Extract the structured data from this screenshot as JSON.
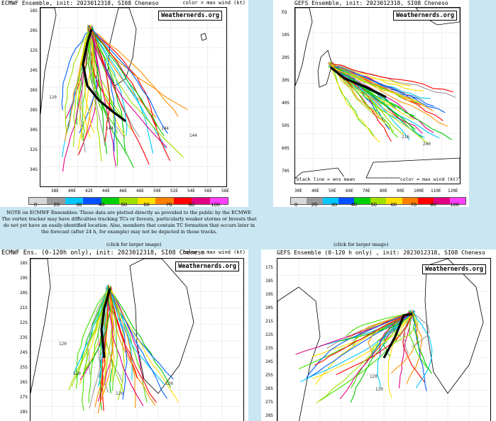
{
  "panels": [
    {
      "id": "ecmwf-full",
      "title": "ECMWF Ensemble, init: 2023012318, SI08 Cheneso",
      "color_note": "color = max wind (kt)",
      "badge": "Weathernerds.org",
      "lat_labels": [
        "18S",
        "20S",
        "22S",
        "24S",
        "26S",
        "28S",
        "30S",
        "32S",
        "34S"
      ],
      "lon_labels": [
        "38E",
        "40E",
        "42E",
        "44E",
        "46E",
        "48E",
        "50E",
        "52E",
        "54E",
        "56E",
        "58E"
      ],
      "annotations": [
        "144",
        "144",
        "144",
        "120"
      ]
    },
    {
      "id": "gefs-full",
      "title": "GEFS Ensemble, init: 2023012318, SI08 Cheneso",
      "color_note": "",
      "badge": "Weathernerds.org",
      "lat_labels": [
        "EQ",
        "10S",
        "20S",
        "30S",
        "40S",
        "50S",
        "60S",
        "70S"
      ],
      "lon_labels": [
        "30E",
        "40E",
        "50E",
        "60E",
        "70E",
        "80E",
        "90E",
        "100E",
        "110E",
        "120E"
      ],
      "legend_left": "black line = ens mean",
      "legend_right": "color = max wind (kt)",
      "annotations": [
        "240",
        "216"
      ]
    },
    {
      "id": "ecmwf-120",
      "title": "ECMWF Ens. (0-120h only), init: 2023012318, SI08 Cheneso",
      "color_note": "color = max wind (kt)",
      "badge": "Weathernerds.org",
      "lat_labels": [
        "18S",
        "19S",
        "20S",
        "21S",
        "22S",
        "23S",
        "24S",
        "25S",
        "26S",
        "27S",
        "28S"
      ],
      "annotations": [
        "120",
        "120",
        "120",
        "120"
      ]
    },
    {
      "id": "gefs-120",
      "title": "GEFS Ensemble (0-120 h only) , init: 2023012318, SI08 Cheneso",
      "color_note": "",
      "badge": "Weathernerds.org",
      "lat_labels": [
        "17S",
        "18S",
        "19S",
        "20S",
        "21S",
        "22S",
        "23S",
        "24S",
        "25S",
        "26S",
        "27S",
        "28S"
      ],
      "annotations": [
        "120",
        "120"
      ]
    }
  ],
  "colorbar": {
    "labels": [
      "0",
      "20",
      "30",
      "40",
      "50",
      "60",
      "70",
      "80",
      "100"
    ],
    "colors": [
      "#d8d8d8",
      "#9a9a9a",
      "#00c8ff",
      "#0050ff",
      "#00d000",
      "#a0e000",
      "#ffe000",
      "#ff8000",
      "#ff0000",
      "#e00080",
      "#ff40ff"
    ]
  },
  "note_text": "NOTE on ECMWF Ensembles: These data are plotted directly as provided to the public by the ECMWF. The vortex tracker may have difficulties tracking TCs or Invests, particularly weaker storms or Invests that do not yet have an easily-identified location. Also, members that contain TC formation that occurs later in the forecast (after 24 h, for example) may not be depicted in these tracks.",
  "click_left": "(click for larger image)",
  "click_right": "(click for larger image)",
  "track_colors": [
    "#00c800",
    "#40e000",
    "#a0e000",
    "#ffe000",
    "#ff9000",
    "#ff0000",
    "#e00080",
    "#0060ff",
    "#00c8ff",
    "#9a9a9a"
  ]
}
